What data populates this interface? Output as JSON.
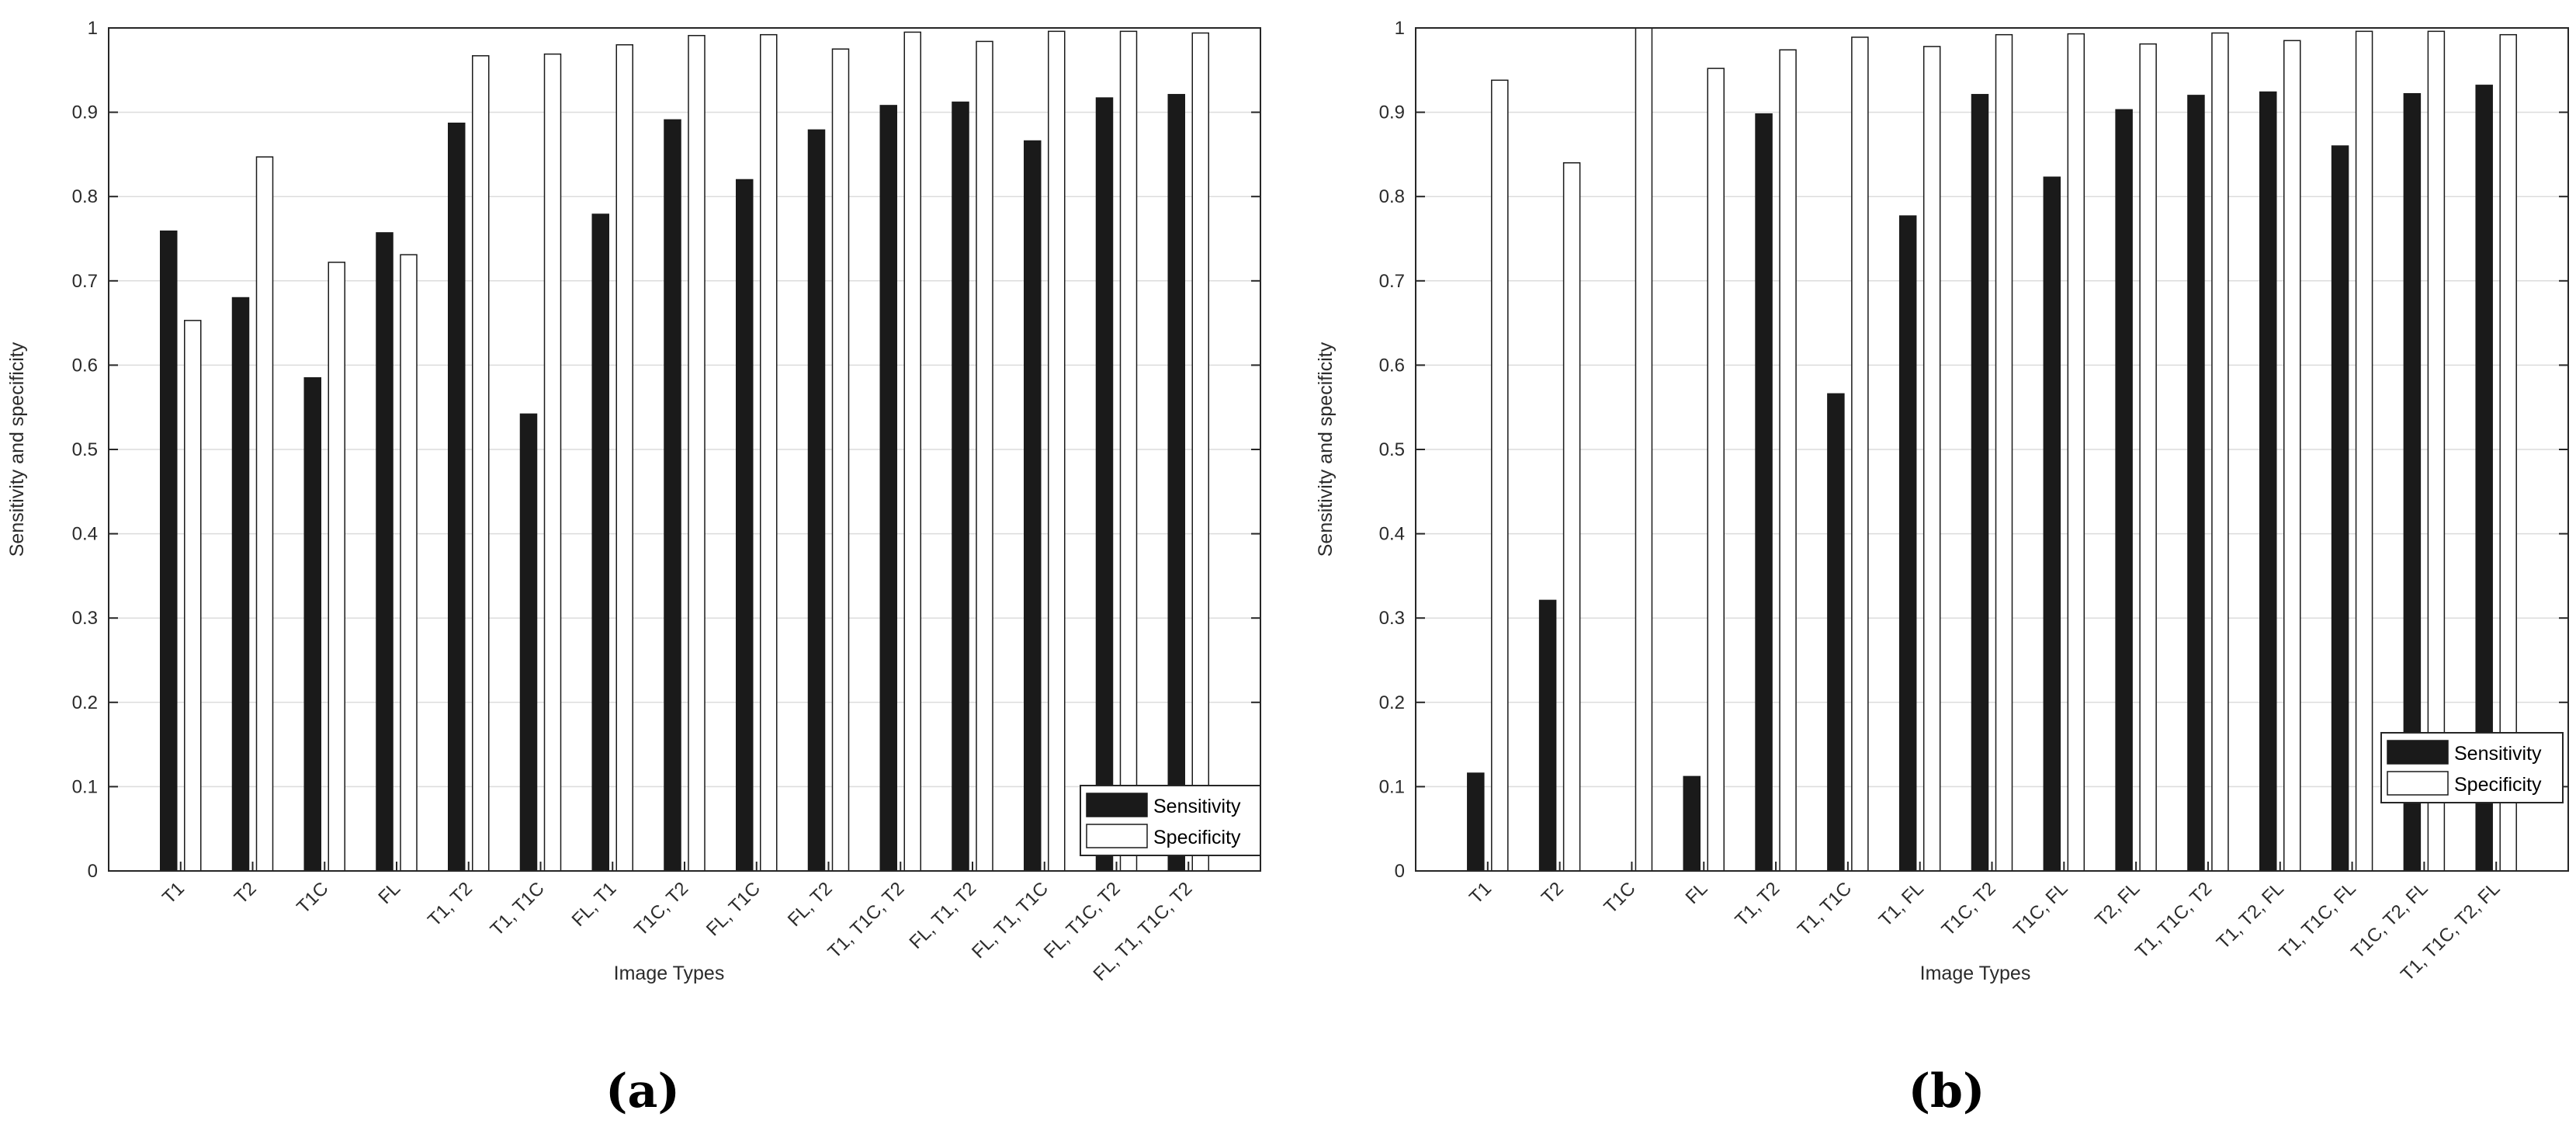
{
  "colors": {
    "sensitivity": "#1a1a1a",
    "specificity": "#ffffff",
    "grid": "#dcdcdc",
    "axis": "#262626"
  },
  "panels": [
    {
      "label": "(a)"
    },
    {
      "label": "(b)"
    }
  ],
  "chart_data": [
    {
      "type": "bar",
      "title": "",
      "xlabel": "Image Types",
      "ylabel": "Sensitivity and specificity",
      "ylim": [
        0,
        1
      ],
      "yticks": [
        "0",
        "0.1",
        "0.2",
        "0.3",
        "0.4",
        "0.5",
        "0.6",
        "0.7",
        "0.8",
        "0.9",
        "1"
      ],
      "grid": "horizontal",
      "legend_position": "bottom-right",
      "categories": [
        "T1",
        "T2",
        "T1C",
        "FL",
        "T1, T2",
        "T1, T1C",
        "FL, T1",
        "T1C, T2",
        "FL, T1C",
        "FL, T2",
        "T1, T1C, T2",
        "FL, T1, T2",
        "FL, T1, T1C",
        "FL, T1C, T2",
        "FL, T1, T1C, T2"
      ],
      "series": [
        {
          "name": "Sensitivity",
          "values": [
            0.759,
            0.68,
            0.585,
            0.757,
            0.887,
            0.542,
            0.779,
            0.891,
            0.82,
            0.879,
            0.908,
            0.912,
            0.866,
            0.917,
            0.921
          ]
        },
        {
          "name": "Specificity",
          "values": [
            0.653,
            0.847,
            0.722,
            0.731,
            0.967,
            0.969,
            0.98,
            0.991,
            0.992,
            0.975,
            0.995,
            0.984,
            0.996,
            0.996,
            0.994
          ]
        }
      ]
    },
    {
      "type": "bar",
      "title": "",
      "xlabel": "Image Types",
      "ylabel": "Sensitivity and specificity",
      "ylim": [
        0,
        1
      ],
      "yticks": [
        "0",
        "0.1",
        "0.2",
        "0.3",
        "0.4",
        "0.5",
        "0.6",
        "0.7",
        "0.8",
        "0.9",
        "1"
      ],
      "grid": "horizontal",
      "legend_position": "bottom-right",
      "categories": [
        "T1",
        "T2",
        "T1C",
        "FL",
        "T1, T2",
        "T1, T1C",
        "T1, FL",
        "T1C, T2",
        "T1C, FL",
        "T2, FL",
        "T1, T1C, T2",
        "T1, T2, FL",
        "T1, T1C, FL",
        "T1C, T2, FL",
        "T1, T1C, T2, FL"
      ],
      "series": [
        {
          "name": "Sensitivity",
          "values": [
            0.116,
            0.321,
            0.0,
            0.112,
            0.898,
            0.566,
            0.777,
            0.921,
            0.823,
            0.903,
            0.92,
            0.924,
            0.86,
            0.922,
            0.932
          ]
        },
        {
          "name": "Specificity",
          "values": [
            0.938,
            0.84,
            1.0,
            0.952,
            0.974,
            0.989,
            0.978,
            0.992,
            0.993,
            0.981,
            0.994,
            0.985,
            0.996,
            0.996,
            0.992
          ]
        }
      ]
    }
  ]
}
